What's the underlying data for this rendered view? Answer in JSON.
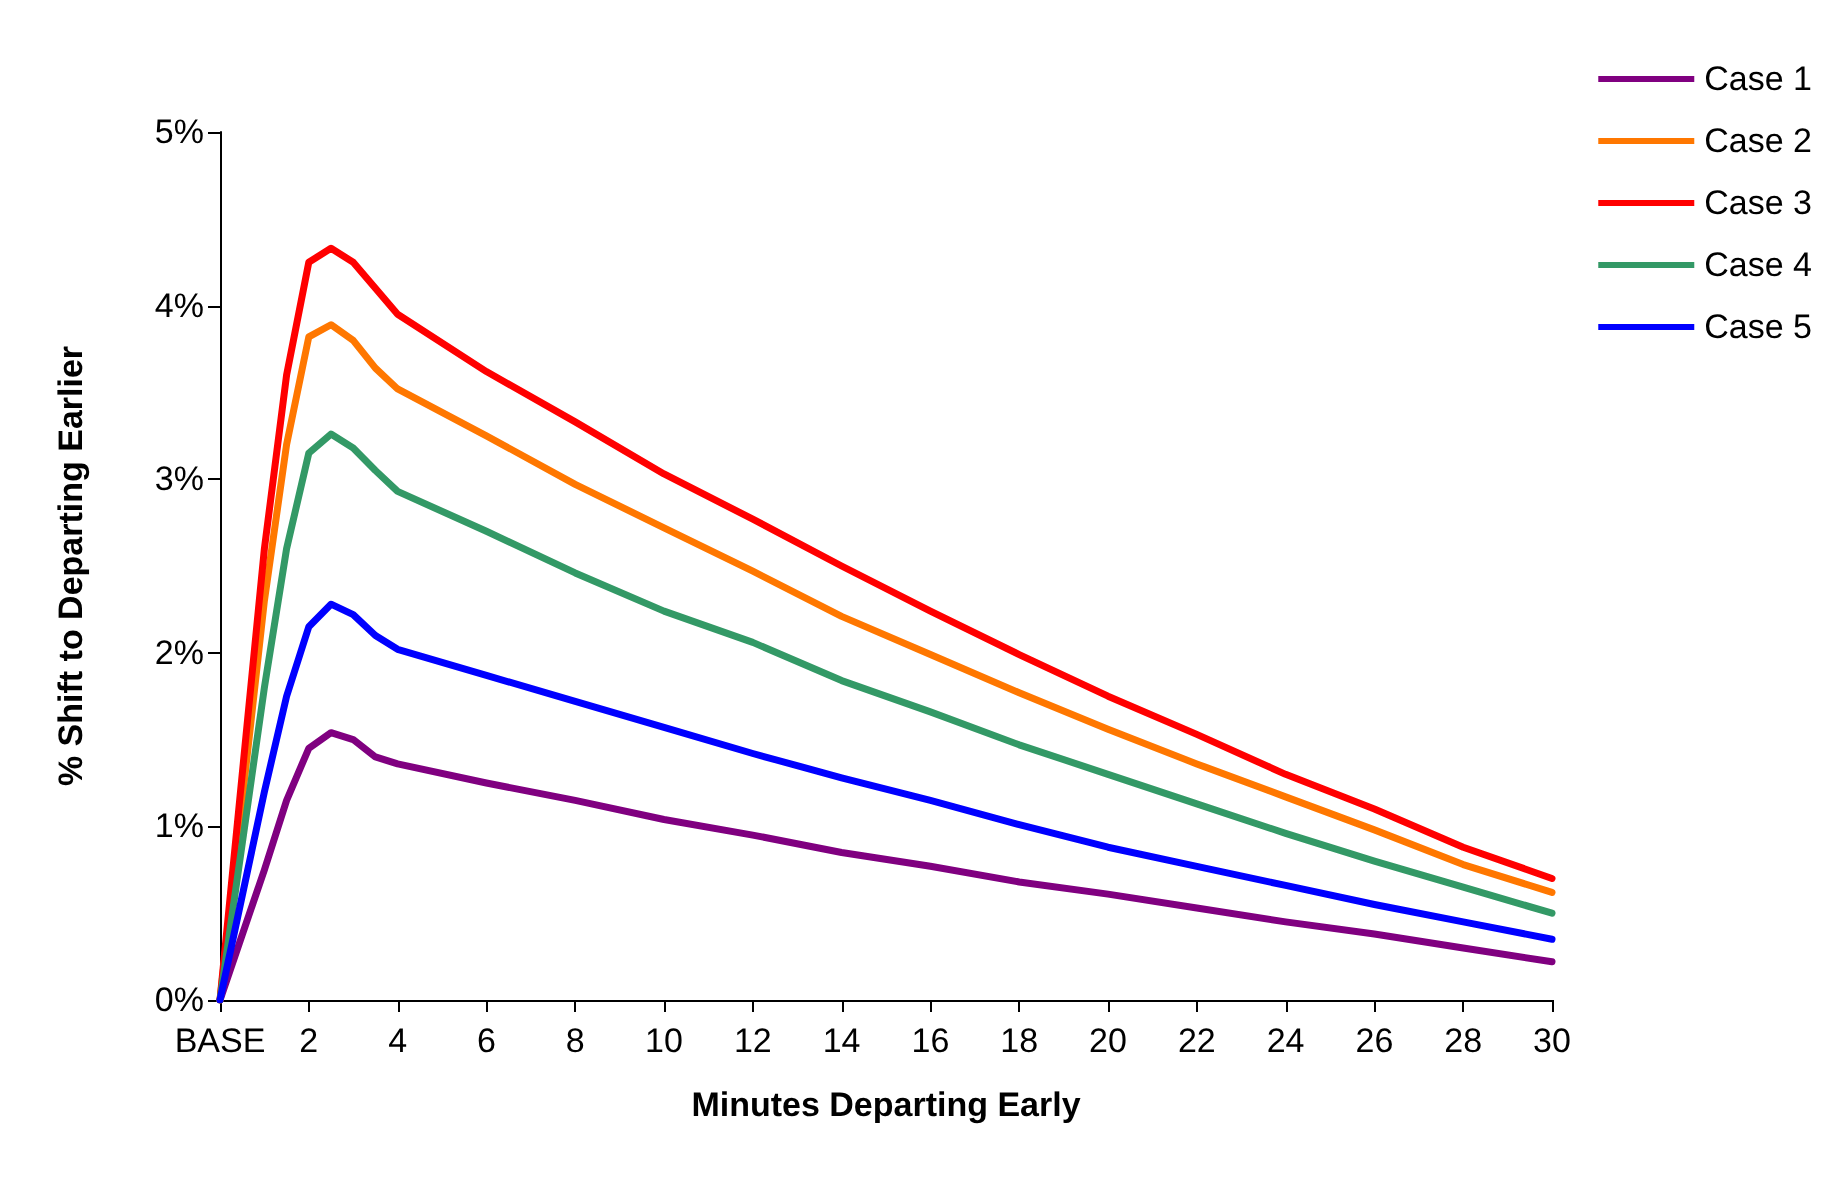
{
  "chart_data": {
    "type": "line",
    "xlabel": "Minutes Departing Early",
    "ylabel": "% Shift to Departing Earlier",
    "x": [
      0,
      1,
      1.5,
      2,
      2.5,
      3,
      3.5,
      4,
      6,
      8,
      10,
      12,
      14,
      16,
      18,
      20,
      22,
      24,
      26,
      28,
      30
    ],
    "series": [
      {
        "name": "Case 1",
        "color": "#800080",
        "values": [
          0,
          0.75,
          1.15,
          1.45,
          1.54,
          1.5,
          1.4,
          1.36,
          1.25,
          1.15,
          1.04,
          0.95,
          0.85,
          0.77,
          0.68,
          0.61,
          0.53,
          0.45,
          0.38,
          0.3,
          0.22
        ]
      },
      {
        "name": "Case 2",
        "color": "#ff7700",
        "values": [
          0,
          2.3,
          3.2,
          3.82,
          3.89,
          3.8,
          3.64,
          3.52,
          3.25,
          2.97,
          2.72,
          2.47,
          2.21,
          1.99,
          1.77,
          1.56,
          1.36,
          1.17,
          0.98,
          0.78,
          0.62
        ]
      },
      {
        "name": "Case 3",
        "color": "#ff0000",
        "values": [
          0,
          2.6,
          3.6,
          4.25,
          4.33,
          4.25,
          4.1,
          3.95,
          3.62,
          3.33,
          3.03,
          2.77,
          2.5,
          2.24,
          1.99,
          1.75,
          1.53,
          1.3,
          1.1,
          0.88,
          0.7
        ]
      },
      {
        "name": "Case 4",
        "color": "#339966",
        "values": [
          0,
          1.8,
          2.6,
          3.15,
          3.26,
          3.18,
          3.05,
          2.93,
          2.7,
          2.46,
          2.24,
          2.06,
          1.84,
          1.66,
          1.47,
          1.3,
          1.13,
          0.96,
          0.8,
          0.65,
          0.5
        ]
      },
      {
        "name": "Case 5",
        "color": "#0000ff",
        "values": [
          0,
          1.2,
          1.75,
          2.15,
          2.28,
          2.22,
          2.1,
          2.02,
          1.87,
          1.72,
          1.57,
          1.42,
          1.28,
          1.15,
          1.01,
          0.88,
          0.77,
          0.66,
          0.55,
          0.45,
          0.35
        ]
      }
    ],
    "xlim": [
      0,
      30
    ],
    "xticks": [
      {
        "value": 0,
        "label": "BASE"
      },
      2,
      4,
      6,
      8,
      10,
      12,
      14,
      16,
      18,
      20,
      22,
      24,
      26,
      28,
      30
    ],
    "ylim": [
      0,
      5
    ],
    "yticks": [
      {
        "value": 0,
        "label": "0%"
      },
      {
        "value": 1,
        "label": "1%"
      },
      {
        "value": 2,
        "label": "2%"
      },
      {
        "value": 3,
        "label": "3%"
      },
      {
        "value": 4,
        "label": "4%"
      },
      {
        "value": 5,
        "label": "5%"
      }
    ],
    "grid": false,
    "legend": "top right",
    "marker": "none",
    "line_style": "solid"
  }
}
